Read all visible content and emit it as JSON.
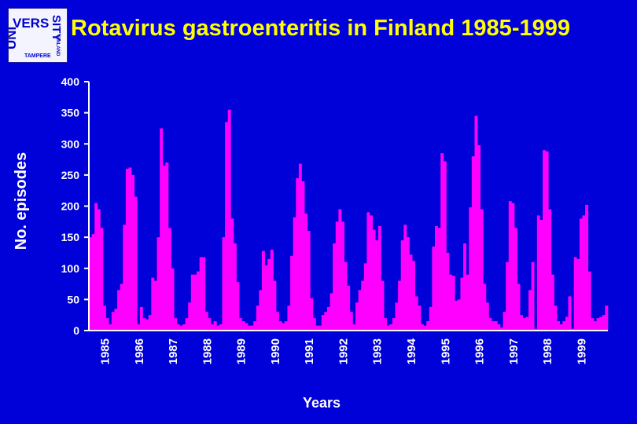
{
  "header": {
    "logo_text": "UNIVERSITY TAMPERE FINLAND"
  },
  "colors": {
    "background": "#0000d8",
    "title": "#ffff00",
    "bars": "#ff00ff",
    "text": "#ffffff"
  },
  "chart_data": {
    "type": "bar",
    "title": "Rotavirus gastroenteritis in Finland 1985-1999",
    "xlabel": "Years",
    "ylabel": "No. episodes",
    "ylim": [
      0,
      400
    ],
    "yticks": [
      "0",
      "50",
      "100",
      "150",
      "200",
      "250",
      "300",
      "350",
      "400"
    ],
    "grid": false,
    "legend": "none",
    "year_labels": [
      "1985",
      "1986",
      "1987",
      "1988",
      "1989",
      "1990",
      "1991",
      "1992",
      "1993",
      "1994",
      "1995",
      "1996",
      "1997",
      "1998",
      "1999"
    ],
    "series": [
      {
        "values": [
          150,
          155,
          205,
          195,
          165,
          40,
          20,
          10,
          30,
          35,
          65,
          75,
          170,
          260,
          262,
          250,
          215,
          10,
          38,
          20,
          18,
          25,
          85,
          80,
          150,
          325,
          265,
          270,
          165,
          100,
          20,
          10,
          8,
          10,
          20,
          45,
          90,
          90,
          95,
          118,
          118,
          30,
          20,
          10,
          15,
          8,
          10,
          150,
          335,
          355,
          180,
          140,
          78,
          20,
          15,
          12,
          8,
          8,
          15,
          40,
          65,
          128,
          105,
          115,
          130,
          80,
          30,
          15,
          12,
          15,
          40,
          120,
          182,
          245,
          268,
          240,
          188,
          160,
          52,
          20,
          8,
          8,
          25,
          30,
          38,
          60,
          140,
          175,
          195,
          175,
          110,
          72,
          30,
          10,
          45,
          65,
          80,
          108,
          190,
          185,
          162,
          145,
          168,
          80,
          20,
          8,
          10,
          20,
          45,
          80,
          145,
          170,
          150,
          122,
          112,
          55,
          40,
          10,
          8,
          15,
          38,
          135,
          168,
          165,
          285,
          272,
          125,
          90,
          88,
          48,
          50,
          85,
          140,
          90,
          198,
          280,
          345,
          298,
          195,
          75,
          45,
          20,
          15,
          15,
          10,
          5,
          30,
          110,
          208,
          205,
          165,
          75,
          25,
          20,
          22,
          65,
          110,
          3,
          185,
          178,
          290,
          288,
          195,
          90,
          40,
          15,
          10,
          15,
          22,
          55,
          3,
          118,
          115,
          180,
          185,
          202,
          95,
          20,
          15,
          20,
          22,
          25,
          40
        ]
      }
    ]
  }
}
